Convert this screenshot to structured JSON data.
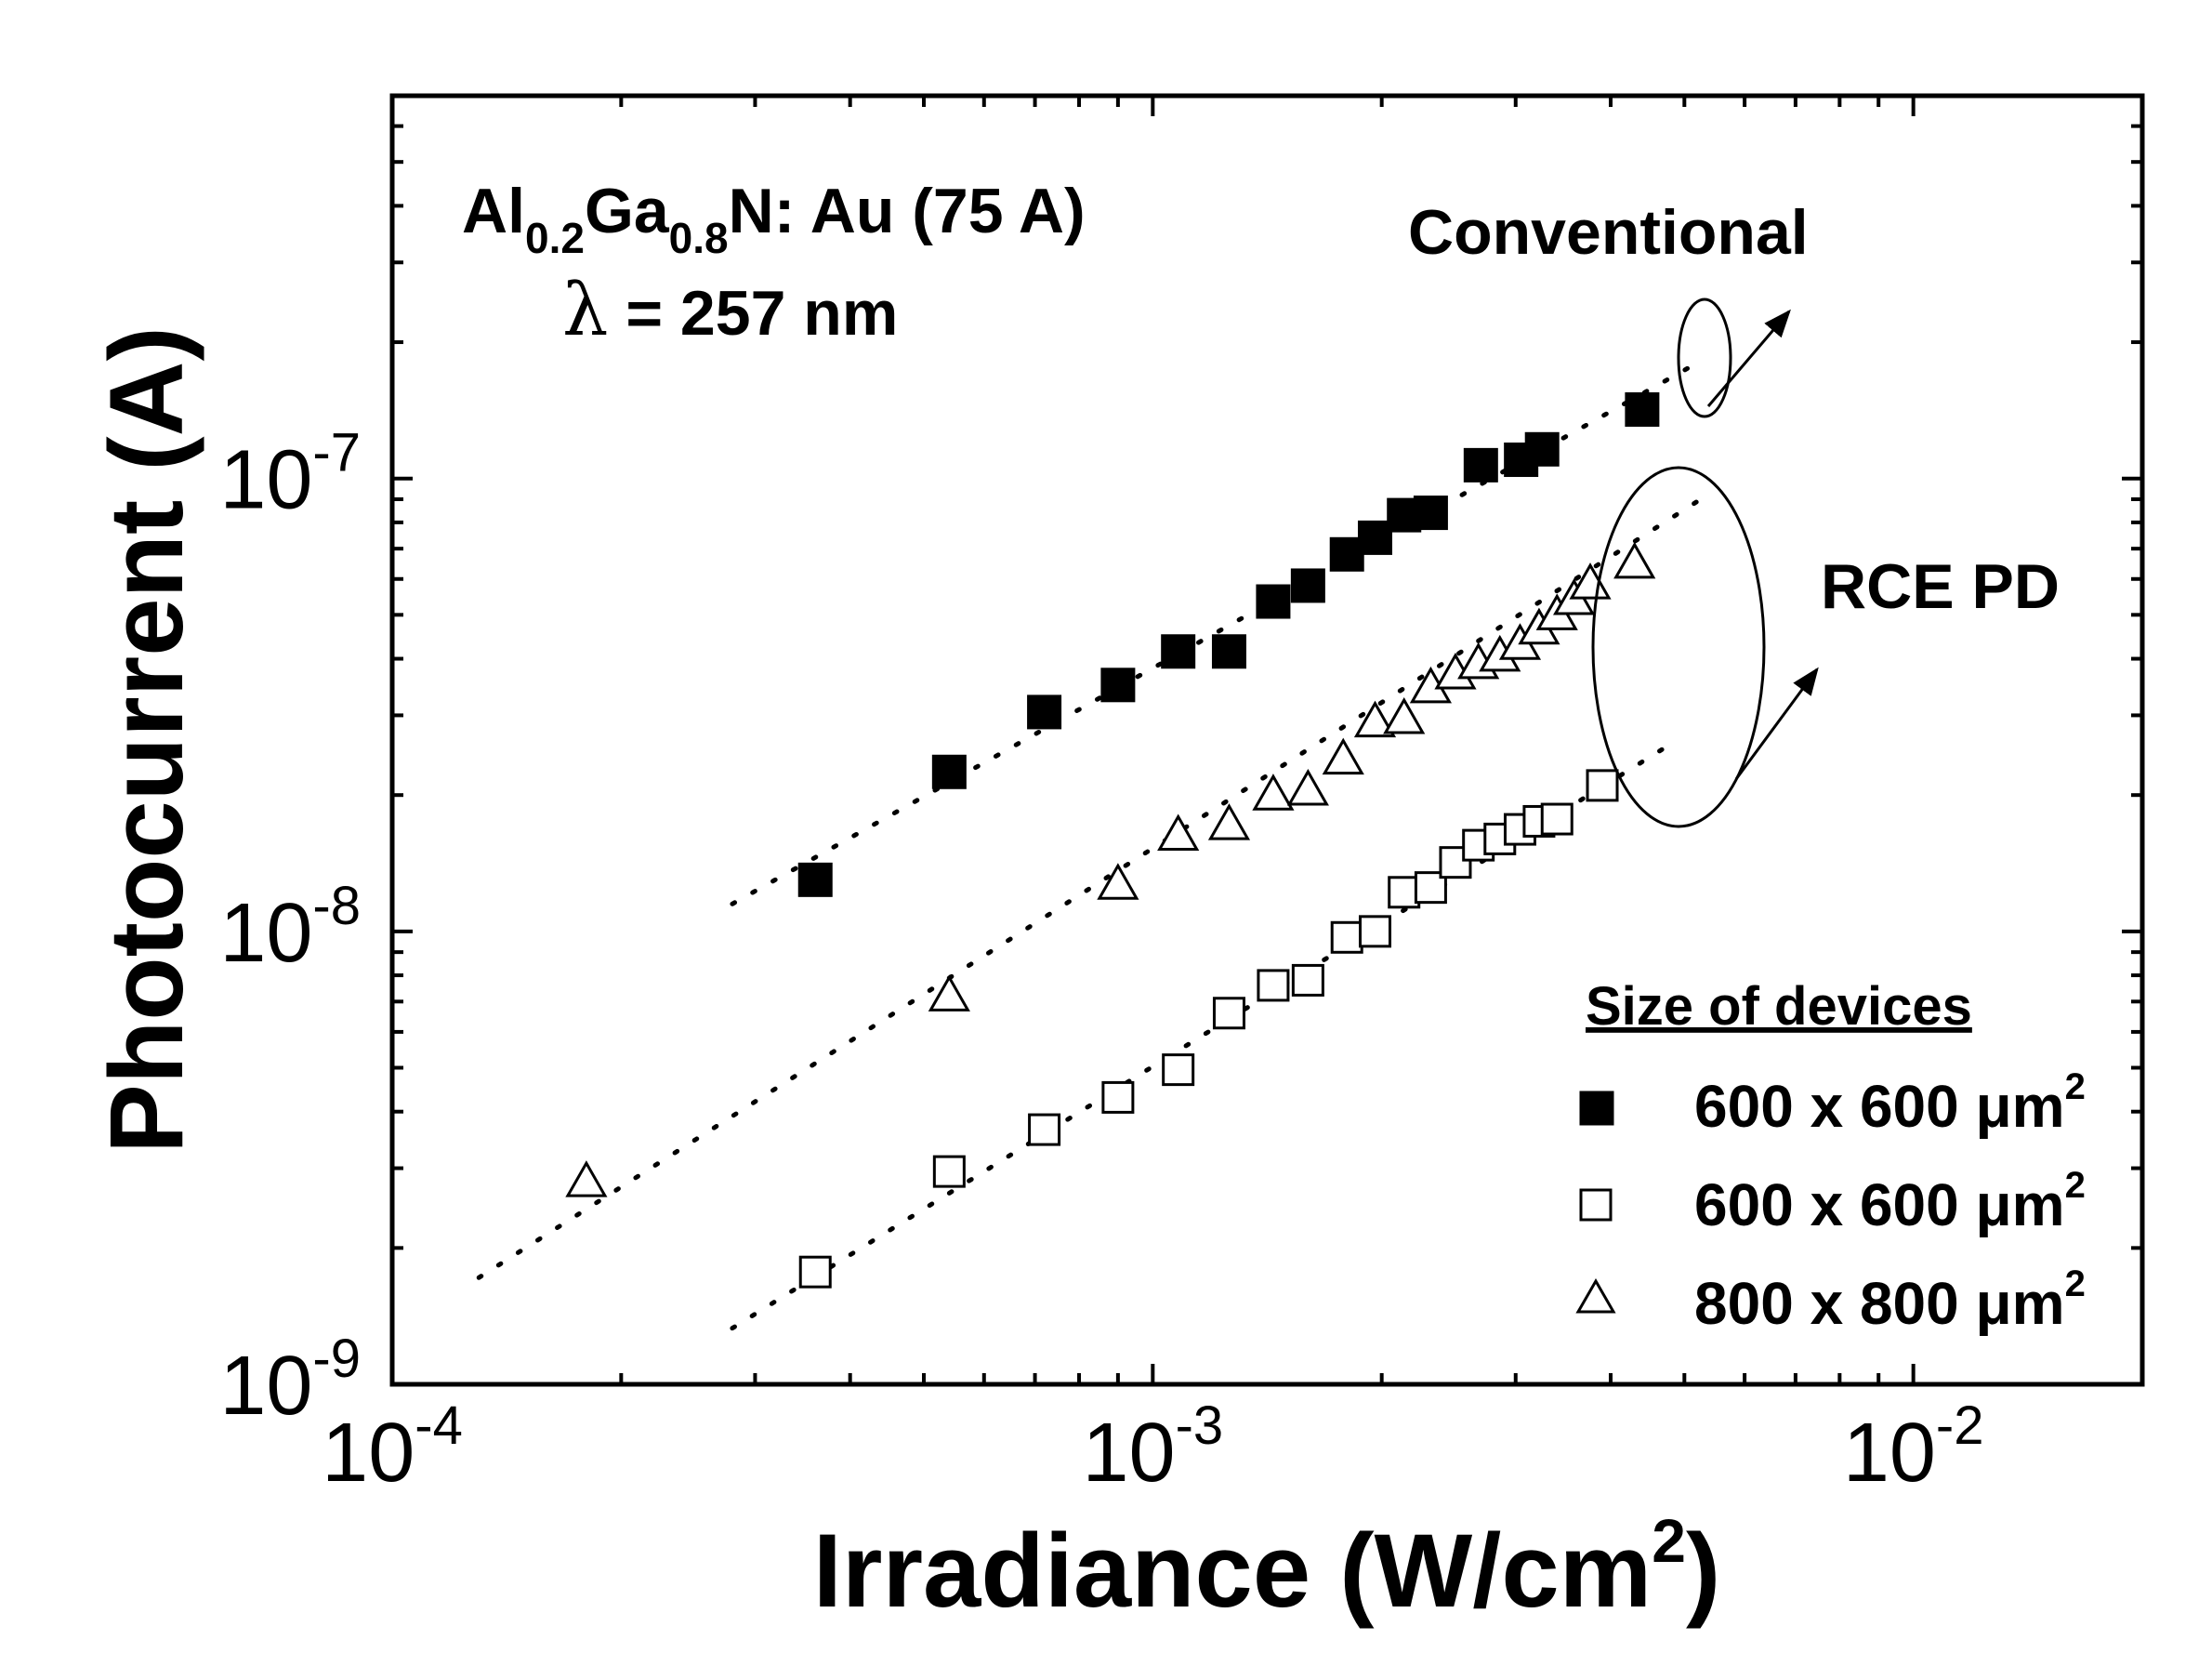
{
  "chart_data": {
    "type": "scatter",
    "x_scale": "log",
    "y_scale": "log",
    "xlim": [
      0.0001,
      0.02
    ],
    "ylim": [
      1e-09,
      7e-07
    ],
    "xlabel": "Irradiance (W/cm",
    "xlabel_sup": "2",
    "xlabel_end": ")",
    "ylabel": "Photocurrent (A)",
    "x_ticks": [
      {
        "value": 0.0001,
        "base": "10",
        "exp": "-4"
      },
      {
        "value": 0.001,
        "base": "10",
        "exp": "-3"
      },
      {
        "value": 0.01,
        "base": "10",
        "exp": "-2"
      }
    ],
    "y_ticks": [
      {
        "value": 1e-09,
        "base": "10",
        "exp": "-9"
      },
      {
        "value": 1e-08,
        "base": "10",
        "exp": "-8"
      },
      {
        "value": 1e-07,
        "base": "10",
        "exp": "-7"
      }
    ],
    "annotations": {
      "material": {
        "a": "Al",
        "s1": "0.2",
        "b": "Ga",
        "s2": "0.8",
        "c": "N: Au (75 A)"
      },
      "wavelength": {
        "symbol": "λ",
        "rest": " = 257 nm"
      },
      "conventional": "Conventional",
      "rce": "RCE PD"
    },
    "legend": {
      "title": "Size of devices",
      "entries": [
        {
          "marker": "filled-square",
          "text": "600 x 600 μm",
          "sup": "2"
        },
        {
          "marker": "open-square",
          "text": "600 x 600 μm",
          "sup": "2"
        },
        {
          "marker": "open-triangle",
          "text": "800 x 800 μm",
          "sup": "2"
        }
      ]
    },
    "series": [
      {
        "name": "Conventional 600 x 600 μm2",
        "marker": "filled-square",
        "x": [
          0.00036,
          0.00054,
          0.00072,
          0.0009,
          0.00108,
          0.00126,
          0.00144,
          0.0016,
          0.0018,
          0.00196,
          0.00214,
          0.00232,
          0.0027,
          0.00305,
          0.00325,
          0.0044
        ],
        "y": [
          1.3e-08,
          2.25e-08,
          3.05e-08,
          3.5e-08,
          4.15e-08,
          4.15e-08,
          5.35e-08,
          5.8e-08,
          6.8e-08,
          7.4e-08,
          8.3e-08,
          8.4e-08,
          1.07e-07,
          1.1e-07,
          1.16e-07,
          1.42e-07
        ]
      },
      {
        "name": "RCE PD 600 x 600 μm2",
        "marker": "open-square",
        "x": [
          0.00036,
          0.00054,
          0.00072,
          0.0009,
          0.00108,
          0.00126,
          0.00144,
          0.0016,
          0.0018,
          0.00196,
          0.00214,
          0.00232,
          0.0025,
          0.00268,
          0.00286,
          0.00304,
          0.00322,
          0.0034,
          0.0039
        ],
        "y": [
          1.77e-09,
          2.95e-09,
          3.65e-09,
          4.3e-09,
          4.95e-09,
          6.6e-09,
          7.6e-09,
          7.8e-09,
          9.7e-09,
          1e-08,
          1.22e-08,
          1.25e-08,
          1.42e-08,
          1.55e-08,
          1.6e-08,
          1.68e-08,
          1.75e-08,
          1.77e-08,
          2.1e-08
        ]
      },
      {
        "name": "RCE PD 800 x 800 μm2",
        "marker": "open-triangle",
        "x": [
          0.00018,
          0.00054,
          0.0009,
          0.00108,
          0.00126,
          0.00144,
          0.0016,
          0.00178,
          0.00196,
          0.00214,
          0.00232,
          0.0025,
          0.00268,
          0.00286,
          0.00304,
          0.00322,
          0.0034,
          0.00358,
          0.00376,
          0.0043
        ],
        "y": [
          2.8e-09,
          7.2e-09,
          1.27e-08,
          1.63e-08,
          1.72e-08,
          2e-08,
          2.05e-08,
          2.4e-08,
          2.9e-08,
          2.95e-08,
          3.45e-08,
          3.7e-08,
          3.9e-08,
          4.05e-08,
          4.3e-08,
          4.65e-08,
          5e-08,
          5.4e-08,
          5.85e-08,
          6.5e-08
        ]
      }
    ],
    "fits": [
      {
        "name": "fit-conventional",
        "x0": 0.00028,
        "y0": 1.15e-08,
        "x1": 0.0052,
        "y1": 1.8e-07
      },
      {
        "name": "fit-rce-800",
        "x0": 0.00013,
        "y0": 1.72e-09,
        "x1": 0.0052,
        "y1": 8.9e-08
      },
      {
        "name": "fit-rce-600",
        "x0": 0.00028,
        "y0": 1.33e-09,
        "x1": 0.0049,
        "y1": 2.65e-08
      }
    ]
  }
}
